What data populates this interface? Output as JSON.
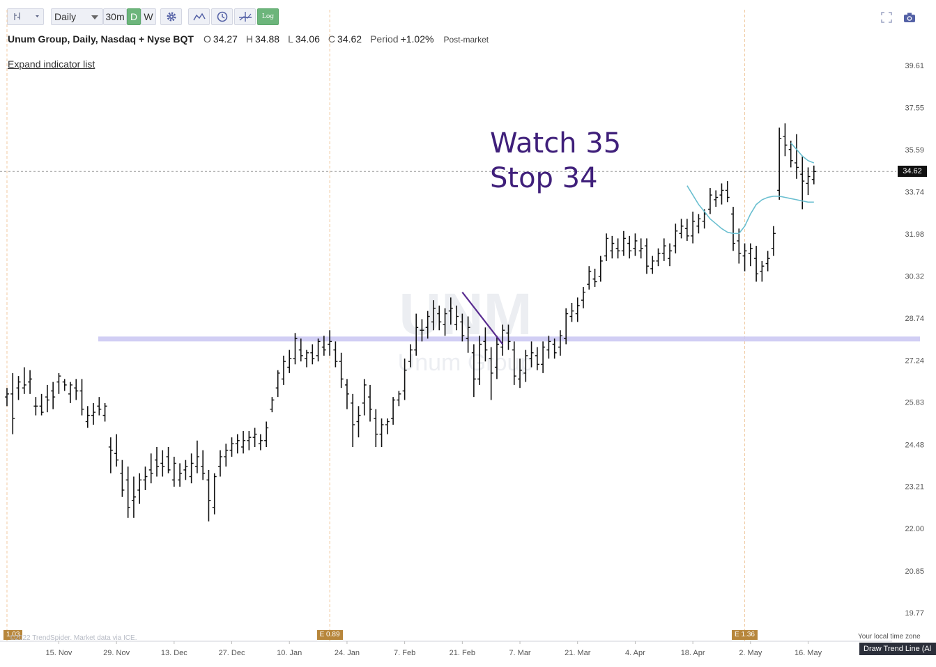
{
  "toolbar": {
    "chart_type_icon": "bar-chart-icon",
    "interval_label": "Daily",
    "intervals": [
      "30m",
      "D",
      "W"
    ],
    "log_label": "Log"
  },
  "header": {
    "title": "Unum Group, Daily, Nasdaq + Nyse BQT",
    "ohlc": [
      {
        "label": "O",
        "value": "34.27"
      },
      {
        "label": "H",
        "value": "34.88"
      },
      {
        "label": "L",
        "value": "34.06"
      },
      {
        "label": "C",
        "value": "34.62"
      }
    ],
    "period_label": "Period",
    "period_value": "+1.02%",
    "session": "Post-market"
  },
  "expand_indicator_label": "Expand indicator list",
  "watermark": {
    "symbol": "UNM",
    "name": "Unum Group"
  },
  "annotation": {
    "line1": "Watch 35",
    "line2": "Stop 34",
    "color": "#3f1f7a"
  },
  "current_price_tag": "34.62",
  "earnings": [
    {
      "label": "1.03",
      "date_index": 0
    },
    {
      "label": "E 0.89",
      "date_index": 56
    },
    {
      "label": "E 1.36",
      "date_index": 128
    }
  ],
  "footer": {
    "copyright": "©2022 TrendSpider. Market data via ICE.",
    "timezone": "Your local time zone",
    "tooltip": "Draw Trend Line (Al"
  },
  "colors": {
    "bars": "#111111",
    "support_band": "#c9c6f2",
    "ma_line": "#6bbfd0",
    "trend_line": "#5a2d91",
    "earnings": "#b7863b"
  },
  "chart_data": {
    "type": "bar",
    "title": "",
    "ylim": [
      19.2,
      40.3
    ],
    "y_ticks": [
      39.61,
      37.55,
      35.59,
      33.74,
      31.98,
      30.32,
      28.74,
      27.24,
      25.83,
      24.48,
      23.21,
      22.0,
      20.85,
      19.77
    ],
    "x_ticks": [
      "15. Nov",
      "29. Nov",
      "13. Dec",
      "27. Dec",
      "10. Jan",
      "24. Jan",
      "7. Feb",
      "21. Feb",
      "7. Mar",
      "21. Mar",
      "4. Apr",
      "18. Apr",
      "2. May",
      "16. May"
    ],
    "x_tick_indices": [
      9,
      19,
      29,
      39,
      49,
      59,
      69,
      79,
      89,
      99,
      109,
      119,
      129,
      139
    ],
    "log_scale": true,
    "grid": false,
    "bar_style": "ohlc",
    "series": [
      {
        "values": [
          [
            26.0,
            26.3,
            25.7,
            26.1
          ],
          [
            26.1,
            26.8,
            24.8,
            25.3
          ],
          [
            26.3,
            26.7,
            25.9,
            26.5
          ],
          [
            26.3,
            27.0,
            26.1,
            26.4
          ],
          [
            26.5,
            26.9,
            26.1,
            26.6
          ],
          [
            25.7,
            26.0,
            25.4,
            25.7
          ],
          [
            25.7,
            26.1,
            25.4,
            25.5
          ],
          [
            26.0,
            26.4,
            25.5,
            25.9
          ],
          [
            26.2,
            26.5,
            25.6,
            26.0
          ],
          [
            26.5,
            26.8,
            26.1,
            26.7
          ],
          [
            26.5,
            26.6,
            26.2,
            26.4
          ],
          [
            26.1,
            26.5,
            25.8,
            26.4
          ],
          [
            26.3,
            26.6,
            25.9,
            26.2
          ],
          [
            26.2,
            26.6,
            25.4,
            25.6
          ],
          [
            25.2,
            25.7,
            25.0,
            25.4
          ],
          [
            25.4,
            25.8,
            25.1,
            25.5
          ],
          [
            25.7,
            26.0,
            25.4,
            25.6
          ],
          [
            25.4,
            25.8,
            25.2,
            25.7
          ],
          [
            24.4,
            24.7,
            23.6,
            24.3
          ],
          [
            24.2,
            24.8,
            23.8,
            24.0
          ],
          [
            23.6,
            24.0,
            22.9,
            23.1
          ],
          [
            23.4,
            23.8,
            22.3,
            22.6
          ],
          [
            22.8,
            23.5,
            22.3,
            22.9
          ],
          [
            23.1,
            23.6,
            22.7,
            23.4
          ],
          [
            23.4,
            23.8,
            23.1,
            23.5
          ],
          [
            23.7,
            24.2,
            23.3,
            23.6
          ],
          [
            24.0,
            24.4,
            23.5,
            23.8
          ],
          [
            23.9,
            24.3,
            23.5,
            23.8
          ],
          [
            24.1,
            24.4,
            23.6,
            23.7
          ],
          [
            23.4,
            24.1,
            23.2,
            23.9
          ],
          [
            23.4,
            23.9,
            23.2,
            23.6
          ],
          [
            23.7,
            24.0,
            23.4,
            23.8
          ],
          [
            23.5,
            24.2,
            23.3,
            23.9
          ],
          [
            23.8,
            24.6,
            23.6,
            24.1
          ],
          [
            23.8,
            24.3,
            23.4,
            23.6
          ],
          [
            23.4,
            23.7,
            22.2,
            22.8
          ],
          [
            22.6,
            23.6,
            22.4,
            23.5
          ],
          [
            23.8,
            24.3,
            23.5,
            24.1
          ],
          [
            24.1,
            24.5,
            23.8,
            24.3
          ],
          [
            24.3,
            24.7,
            24.1,
            24.5
          ],
          [
            24.5,
            24.8,
            24.2,
            24.6
          ],
          [
            24.4,
            24.9,
            24.2,
            24.6
          ],
          [
            24.6,
            24.9,
            24.3,
            24.7
          ],
          [
            24.7,
            25.0,
            24.4,
            24.8
          ],
          [
            24.5,
            24.8,
            24.3,
            24.6
          ],
          [
            24.6,
            25.2,
            24.4,
            25.0
          ],
          [
            25.6,
            26.0,
            25.5,
            25.9
          ],
          [
            26.3,
            26.9,
            26.0,
            26.8
          ],
          [
            26.6,
            27.4,
            26.4,
            27.2
          ],
          [
            27.0,
            27.6,
            26.8,
            27.3
          ],
          [
            27.3,
            28.2,
            27.1,
            28.0
          ],
          [
            27.6,
            28.0,
            27.2,
            27.4
          ],
          [
            27.3,
            27.6,
            27.0,
            27.5
          ],
          [
            27.5,
            27.8,
            27.1,
            27.3
          ],
          [
            27.4,
            28.0,
            27.2,
            27.9
          ],
          [
            27.7,
            28.1,
            27.4,
            27.6
          ],
          [
            27.8,
            28.3,
            27.4,
            27.9
          ],
          [
            27.6,
            27.9,
            27.0,
            27.2
          ],
          [
            27.2,
            27.5,
            26.3,
            26.6
          ],
          [
            26.4,
            26.6,
            25.6,
            26.1
          ],
          [
            25.8,
            26.1,
            24.4,
            25.1
          ],
          [
            25.2,
            25.7,
            24.7,
            25.4
          ],
          [
            25.8,
            26.6,
            25.4,
            26.4
          ],
          [
            26.0,
            26.4,
            25.2,
            25.6
          ],
          [
            25.3,
            25.6,
            24.4,
            24.8
          ],
          [
            24.8,
            25.3,
            24.4,
            25.1
          ],
          [
            25.1,
            25.3,
            24.8,
            25.2
          ],
          [
            25.3,
            26.0,
            25.1,
            25.9
          ],
          [
            25.9,
            26.2,
            25.7,
            26.1
          ],
          [
            26.2,
            27.3,
            25.9,
            26.9
          ],
          [
            27.2,
            27.8,
            27.0,
            27.6
          ],
          [
            27.6,
            28.9,
            27.4,
            28.4
          ],
          [
            28.3,
            28.7,
            27.9,
            28.3
          ],
          [
            28.4,
            29.0,
            28.0,
            28.8
          ],
          [
            28.6,
            29.4,
            28.3,
            29.1
          ],
          [
            28.9,
            29.2,
            28.3,
            28.6
          ],
          [
            28.5,
            29.1,
            28.1,
            28.9
          ],
          [
            29.0,
            29.5,
            28.5,
            29.1
          ],
          [
            28.5,
            29.2,
            28.3,
            28.8
          ],
          [
            28.6,
            28.9,
            27.9,
            28.1
          ],
          [
            28.0,
            28.8,
            27.5,
            28.4
          ],
          [
            27.5,
            27.8,
            26.0,
            26.6
          ],
          [
            26.6,
            28.1,
            26.4,
            27.8
          ],
          [
            27.9,
            28.4,
            27.2,
            27.6
          ],
          [
            27.3,
            27.7,
            25.9,
            26.8
          ],
          [
            27.0,
            28.1,
            26.6,
            27.8
          ],
          [
            27.7,
            28.5,
            27.4,
            28.3
          ],
          [
            28.2,
            28.5,
            27.6,
            27.9
          ],
          [
            27.6,
            27.9,
            26.4,
            26.7
          ],
          [
            26.6,
            27.3,
            26.3,
            26.9
          ],
          [
            26.8,
            27.6,
            26.5,
            27.4
          ],
          [
            27.3,
            27.9,
            27.0,
            27.5
          ],
          [
            27.4,
            27.7,
            26.9,
            27.1
          ],
          [
            27.1,
            27.9,
            26.8,
            27.7
          ],
          [
            27.6,
            28.1,
            27.3,
            27.9
          ],
          [
            27.8,
            28.0,
            27.3,
            27.5
          ],
          [
            27.7,
            28.3,
            27.4,
            28.1
          ],
          [
            28.0,
            29.1,
            27.8,
            28.9
          ],
          [
            28.8,
            29.3,
            28.6,
            29.0
          ],
          [
            28.9,
            29.5,
            28.6,
            29.2
          ],
          [
            29.4,
            29.9,
            29.1,
            29.7
          ],
          [
            30.0,
            30.7,
            29.8,
            30.5
          ],
          [
            30.2,
            30.6,
            29.9,
            30.1
          ],
          [
            30.3,
            31.1,
            30.1,
            30.9
          ],
          [
            31.1,
            32.0,
            30.9,
            31.8
          ],
          [
            31.3,
            31.9,
            31.0,
            31.6
          ],
          [
            31.4,
            31.8,
            31.0,
            31.3
          ],
          [
            31.3,
            32.1,
            31.1,
            31.8
          ],
          [
            31.6,
            31.9,
            31.0,
            31.3
          ],
          [
            31.4,
            32.0,
            31.1,
            31.7
          ],
          [
            31.3,
            31.8,
            31.0,
            31.4
          ],
          [
            31.5,
            31.8,
            30.4,
            30.7
          ],
          [
            30.6,
            31.1,
            30.4,
            30.9
          ],
          [
            30.9,
            31.4,
            30.7,
            31.2
          ],
          [
            31.2,
            31.8,
            30.9,
            31.5
          ],
          [
            31.0,
            31.6,
            30.7,
            31.3
          ],
          [
            31.5,
            32.4,
            31.2,
            32.1
          ],
          [
            32.0,
            32.6,
            31.8,
            32.3
          ],
          [
            32.2,
            32.6,
            31.7,
            31.9
          ],
          [
            31.9,
            32.9,
            31.6,
            32.5
          ],
          [
            32.3,
            32.8,
            32.0,
            32.6
          ],
          [
            32.5,
            33.0,
            32.2,
            32.8
          ],
          [
            33.0,
            33.9,
            32.8,
            33.6
          ],
          [
            33.4,
            33.8,
            33.1,
            33.5
          ],
          [
            33.6,
            34.1,
            33.2,
            33.8
          ],
          [
            33.8,
            34.2,
            33.3,
            33.5
          ],
          [
            32.8,
            33.1,
            31.3,
            31.6
          ],
          [
            31.7,
            32.2,
            30.8,
            31.2
          ],
          [
            31.1,
            31.6,
            30.5,
            31.3
          ],
          [
            31.2,
            31.6,
            30.7,
            31.4
          ],
          [
            31.0,
            31.5,
            30.1,
            30.4
          ],
          [
            30.5,
            30.9,
            30.1,
            30.7
          ],
          [
            30.8,
            31.3,
            30.5,
            31.0
          ],
          [
            31.4,
            32.3,
            31.1,
            32.0
          ],
          [
            33.8,
            36.6,
            33.4,
            36.1
          ],
          [
            36.2,
            36.8,
            35.3,
            35.8
          ],
          [
            35.6,
            36.0,
            34.8,
            35.1
          ],
          [
            35.0,
            36.3,
            34.3,
            34.8
          ],
          [
            34.5,
            35.3,
            33.0,
            34.2
          ],
          [
            34.1,
            34.8,
            33.6,
            34.4
          ],
          [
            34.27,
            34.88,
            34.06,
            34.62
          ]
        ]
      },
      {
        "name": "",
        "type": "line",
        "values": [
          34.0,
          33.6,
          33.2,
          32.9,
          32.6,
          32.4,
          32.2,
          32.05,
          32.0,
          32.0,
          32.3,
          32.8,
          33.2,
          33.4,
          33.5,
          33.55,
          33.55,
          33.5,
          33.45,
          33.4,
          33.35,
          33.3,
          33.3
        ]
      }
    ],
    "support_level": 28.0,
    "trend_line": {
      "from": [
        79,
        29.7
      ],
      "to": [
        86,
        27.8
      ]
    }
  }
}
